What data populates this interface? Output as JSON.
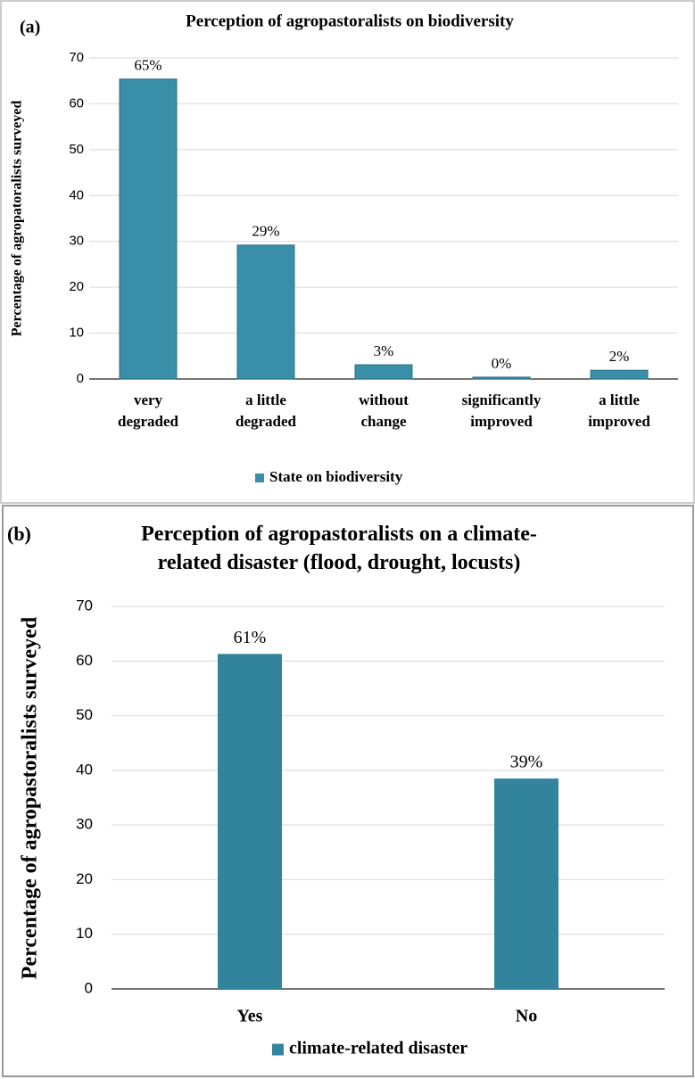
{
  "chart_data": [
    {
      "type": "bar",
      "panel_label": "(a)",
      "title": "Perception of agropastoralists on biodiversity",
      "y_label": "Percentage of agropatoralists surveyed",
      "categories": [
        "very\ndegraded",
        "a little\ndegraded",
        "without\nchange",
        "significantly\nimproved",
        "a little\nimproved"
      ],
      "series": [
        {
          "name": "State on biodiversity",
          "color": "#3a8fa8",
          "values": [
            65.4,
            29.2,
            3.1,
            0.4,
            1.9
          ],
          "value_labels": [
            "65%",
            "29%",
            "3%",
            "0%",
            "2%"
          ]
        }
      ],
      "ylim": [
        0,
        70
      ],
      "yticks": [
        0,
        10,
        20,
        30,
        40,
        50,
        60,
        70
      ],
      "grid": true
    },
    {
      "type": "bar",
      "panel_label": "(b)",
      "title": "Perception of agropastoralists on a climate-\nrelated disaster (flood, drought, locusts)",
      "y_label": "Percentage of agropastoralists surveyed",
      "categories": [
        "Yes",
        "No"
      ],
      "series": [
        {
          "name": "climate-related disaster",
          "color": "#31849b",
          "values": [
            61.3,
            38.5
          ],
          "value_labels": [
            "61%",
            "39%"
          ]
        }
      ],
      "ylim": [
        0,
        70
      ],
      "yticks": [
        0,
        10,
        20,
        30,
        40,
        50,
        60,
        70
      ],
      "grid": true
    }
  ]
}
